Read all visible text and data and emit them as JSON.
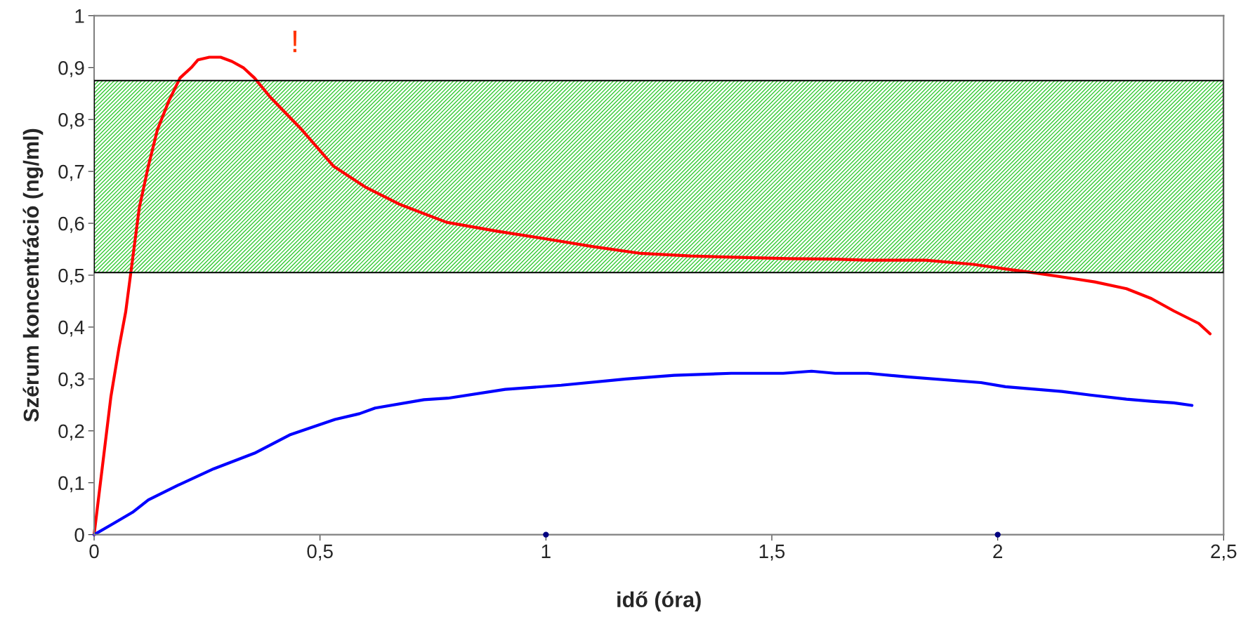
{
  "chart_data": {
    "type": "line",
    "xlabel": "idő (óra)",
    "ylabel": "Szérum koncentráció (ng/ml)",
    "xlim": [
      0,
      2.5
    ],
    "ylim": [
      0,
      1
    ],
    "xticks": [
      0,
      {
        "value": 0.5,
        "label": "0,5"
      },
      1,
      {
        "value": 1.5,
        "label": "1,5"
      },
      2,
      {
        "value": 2.5,
        "label": "2,5"
      }
    ],
    "yticks": [
      0,
      {
        "value": 0.1,
        "label": "0,1"
      },
      {
        "value": 0.2,
        "label": "0,2"
      },
      {
        "value": 0.3,
        "label": "0,3"
      },
      {
        "value": 0.4,
        "label": "0,4"
      },
      {
        "value": 0.5,
        "label": "0,5"
      },
      {
        "value": 0.6,
        "label": "0,6"
      },
      {
        "value": 0.7,
        "label": "0,7"
      },
      {
        "value": 0.8,
        "label": "0,8"
      },
      {
        "value": 0.9,
        "label": "0,9"
      },
      1
    ],
    "grid": false,
    "bands": [
      {
        "axis": "y",
        "from": 0.505,
        "to": 0.875,
        "color": "#33cc33"
      }
    ],
    "annotations": [
      "!"
    ],
    "series": [
      {
        "color": "#ff0000",
        "x": [
          0,
          0.037,
          0.055,
          0.07,
          0.085,
          0.1,
          0.12,
          0.14,
          0.165,
          0.19,
          0.215,
          0.23,
          0.255,
          0.28,
          0.305,
          0.33,
          0.355,
          0.39,
          0.46,
          0.53,
          0.6,
          0.675,
          0.78,
          0.89,
          1.0,
          1.105,
          1.21,
          1.32,
          1.445,
          1.535,
          1.64,
          1.71,
          1.84,
          1.945,
          2.017,
          2.07,
          2.14,
          2.215,
          2.285,
          2.34,
          2.39,
          2.445,
          2.47
        ],
        "values": [
          0,
          0.265,
          0.36,
          0.43,
          0.53,
          0.63,
          0.71,
          0.78,
          0.835,
          0.88,
          0.9,
          0.915,
          0.92,
          0.92,
          0.912,
          0.9,
          0.88,
          0.843,
          0.78,
          0.71,
          0.67,
          0.637,
          0.602,
          0.585,
          0.57,
          0.555,
          0.542,
          0.537,
          0.534,
          0.532,
          0.531,
          0.529,
          0.529,
          0.521,
          0.512,
          0.506,
          0.497,
          0.487,
          0.474,
          0.455,
          0.431,
          0.407,
          0.387
        ]
      },
      {
        "color": "#0000ff",
        "x": [
          0,
          0.04,
          0.085,
          0.12,
          0.185,
          0.265,
          0.355,
          0.435,
          0.533,
          0.587,
          0.622,
          0.73,
          0.783,
          0.91,
          1.034,
          1.177,
          1.284,
          1.41,
          1.525,
          1.588,
          1.64,
          1.713,
          1.8,
          1.963,
          2.017,
          2.142,
          2.205,
          2.285,
          2.34,
          2.39,
          2.43
        ],
        "values": [
          0,
          0.02,
          0.043,
          0.067,
          0.095,
          0.127,
          0.157,
          0.193,
          0.222,
          0.233,
          0.244,
          0.26,
          0.263,
          0.28,
          0.288,
          0.3,
          0.307,
          0.311,
          0.311,
          0.315,
          0.311,
          0.311,
          0.304,
          0.293,
          0.285,
          0.276,
          0.269,
          0.261,
          0.257,
          0.254,
          0.249
        ]
      },
      {
        "type": "scatter",
        "color": "#000080",
        "x": [
          1,
          2
        ],
        "values": [
          0,
          0
        ]
      }
    ]
  }
}
